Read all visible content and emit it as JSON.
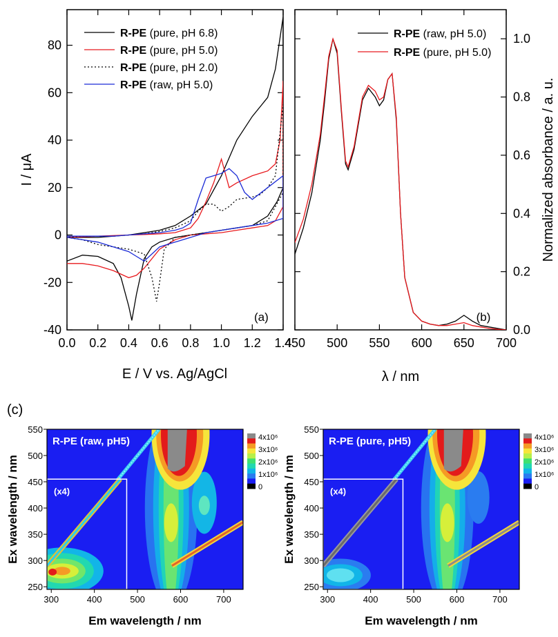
{
  "chart_data": [
    {
      "panel": "(a)",
      "type": "line",
      "xlabel": "E / V vs. Ag/AgCl",
      "ylabel": "I / μA",
      "xlim": [
        0.0,
        1.4
      ],
      "ylim": [
        -40,
        95
      ],
      "xticks": [
        "0.0",
        "0.2",
        "0.4",
        "0.6",
        "0.8",
        "1.0",
        "1.2",
        "1.4"
      ],
      "yticks": [
        "-40",
        "-20",
        "0",
        "20",
        "40",
        "60",
        "80"
      ],
      "legend": "top-left",
      "series": [
        {
          "name": "R-PE (pure, pH 6.8)",
          "bold": "R-PE",
          "rest": " (pure, pH 6.8)",
          "color": "#000000",
          "dash": "",
          "x": [
            0.0,
            0.1,
            0.2,
            0.3,
            0.35,
            0.4,
            0.42,
            0.45,
            0.5,
            0.55,
            0.6,
            0.7,
            0.8,
            0.9,
            1.0,
            1.1,
            1.2,
            1.3,
            1.36,
            1.4,
            1.4,
            1.35,
            1.3,
            1.2,
            1.1,
            1.0,
            0.9,
            0.8,
            0.7,
            0.6,
            0.5,
            0.4,
            0.3,
            0.2,
            0.1,
            0.0
          ],
          "y": [
            -11,
            -8.5,
            -9,
            -12,
            -18,
            -30,
            -36,
            -25,
            -10,
            -5,
            -3,
            -1,
            0,
            1,
            2,
            3,
            4,
            8,
            14,
            20,
            92,
            70,
            58,
            50,
            40,
            25,
            13,
            8,
            4,
            2,
            1,
            0,
            -0.5,
            -1,
            -1,
            -1
          ]
        },
        {
          "name": "R-PE (pure, pH 5.0)",
          "bold": "R-PE",
          "rest": " (pure, pH 5.0)",
          "color": "#e8191d",
          "dash": "",
          "x": [
            0.0,
            0.1,
            0.2,
            0.3,
            0.4,
            0.45,
            0.5,
            0.6,
            0.7,
            0.8,
            0.9,
            1.0,
            1.1,
            1.2,
            1.3,
            1.35,
            1.4,
            1.4,
            1.38,
            1.35,
            1.3,
            1.2,
            1.1,
            1.05,
            1.0,
            0.95,
            0.9,
            0.85,
            0.8,
            0.7,
            0.6,
            0.5,
            0.4,
            0.2,
            0.0
          ],
          "y": [
            -12,
            -12,
            -13,
            -15,
            -18,
            -17,
            -14,
            -6,
            -2,
            0,
            0.5,
            1,
            2,
            3,
            4,
            6,
            12,
            65,
            40,
            30,
            27,
            25,
            22,
            20,
            32,
            22,
            14,
            7,
            3,
            1,
            0.5,
            0.2,
            0,
            -0.5,
            -1
          ]
        },
        {
          "name": "R-PE (pure, pH 2.0)",
          "bold": "R-PE",
          "rest": " (pure, pH 2.0)",
          "color": "#000000",
          "dash": "2,3",
          "x": [
            0.0,
            0.1,
            0.2,
            0.3,
            0.4,
            0.5,
            0.55,
            0.58,
            0.6,
            0.63,
            0.7,
            0.8,
            0.9,
            1.0,
            1.1,
            1.2,
            1.3,
            1.35,
            1.4,
            1.4,
            1.35,
            1.3,
            1.25,
            1.2,
            1.1,
            1.05,
            1.0,
            0.95,
            0.9,
            0.85,
            0.8,
            0.7,
            0.6,
            0.5,
            0.4,
            0.3,
            0.2,
            0.1,
            0.0
          ],
          "y": [
            -1,
            -2,
            -4,
            -5,
            -6,
            -8,
            -18,
            -28,
            -20,
            -6,
            -1,
            0,
            1,
            2,
            3,
            4,
            6,
            12,
            18,
            55,
            25,
            20,
            17,
            16,
            15,
            12,
            10,
            13,
            13,
            10,
            6,
            3,
            1.5,
            0.5,
            0,
            -0.5,
            -0.5,
            -0.5,
            -1
          ]
        },
        {
          "name": "R-PE (raw, pH 5.0)",
          "bold": "R-PE",
          "rest": " (raw, pH 5.0)",
          "color": "#1a2ad6",
          "dash": "",
          "x": [
            0.0,
            0.1,
            0.2,
            0.3,
            0.4,
            0.45,
            0.5,
            0.55,
            0.6,
            0.7,
            0.8,
            0.9,
            1.0,
            1.1,
            1.2,
            1.3,
            1.4,
            1.4,
            1.3,
            1.2,
            1.15,
            1.1,
            1.05,
            1.0,
            0.95,
            0.9,
            0.85,
            0.8,
            0.75,
            0.7,
            0.6,
            0.5,
            0.4,
            0.3,
            0.2,
            0.1,
            0.0
          ],
          "y": [
            -1,
            -2,
            -3,
            -5,
            -7,
            -9,
            -11,
            -8,
            -5,
            -3,
            -1,
            1,
            2,
            3,
            4,
            5,
            7,
            25,
            20,
            15,
            18,
            25,
            28,
            26,
            25,
            24,
            15,
            5,
            3,
            2,
            1,
            0.5,
            0,
            -0.5,
            -0.5,
            -0.5,
            -0.5
          ]
        }
      ]
    },
    {
      "panel": "(b)",
      "type": "line",
      "xlabel": "λ / nm",
      "ylabel": "Normalized absorbance / a. u.",
      "xlim": [
        450,
        700
      ],
      "ylim": [
        0.0,
        1.1
      ],
      "xticks": [
        "450",
        "500",
        "550",
        "600",
        "650",
        "700"
      ],
      "yticks": [
        "0.0",
        "0.2",
        "0.4",
        "0.6",
        "0.8",
        "1.0"
      ],
      "legend": "top-right",
      "series": [
        {
          "name": "R-PE (raw, pH 5.0)",
          "bold": "R-PE",
          "rest": " (raw, pH 5.0)",
          "color": "#000000",
          "dash": "",
          "x": [
            450,
            460,
            470,
            480,
            485,
            490,
            495,
            500,
            505,
            510,
            513,
            520,
            530,
            537,
            545,
            550,
            555,
            560,
            565,
            570,
            575,
            580,
            590,
            600,
            610,
            620,
            630,
            640,
            650,
            660,
            670,
            680,
            690,
            700
          ],
          "y": [
            0.26,
            0.35,
            0.47,
            0.65,
            0.78,
            0.93,
            1.0,
            0.95,
            0.75,
            0.57,
            0.55,
            0.62,
            0.79,
            0.83,
            0.8,
            0.77,
            0.79,
            0.86,
            0.88,
            0.72,
            0.4,
            0.18,
            0.06,
            0.03,
            0.02,
            0.015,
            0.02,
            0.03,
            0.05,
            0.03,
            0.015,
            0.01,
            0.005,
            0.0
          ]
        },
        {
          "name": "R-PE (pure, pH 5.0)",
          "bold": "R-PE",
          "rest": " (pure, pH 5.0)",
          "color": "#e8191d",
          "dash": "",
          "x": [
            450,
            460,
            470,
            480,
            485,
            490,
            495,
            500,
            505,
            510,
            513,
            520,
            530,
            537,
            545,
            550,
            555,
            560,
            565,
            570,
            575,
            580,
            590,
            600,
            610,
            620,
            630,
            640,
            650,
            660,
            670,
            680,
            690,
            700
          ],
          "y": [
            0.3,
            0.38,
            0.5,
            0.67,
            0.8,
            0.94,
            1.0,
            0.96,
            0.76,
            0.58,
            0.56,
            0.63,
            0.8,
            0.84,
            0.82,
            0.79,
            0.8,
            0.86,
            0.88,
            0.73,
            0.4,
            0.18,
            0.06,
            0.03,
            0.02,
            0.015,
            0.015,
            0.02,
            0.025,
            0.015,
            0.01,
            0.005,
            0.002,
            0.0
          ]
        }
      ]
    },
    {
      "panel": "(c) left",
      "type": "heatmap",
      "title": "R-PE (raw, pH5)",
      "inset": "(x4)",
      "xlabel": "Em wavelength / nm",
      "ylabel": "Ex wavelength / nm",
      "xlim": [
        290,
        745
      ],
      "ylim": [
        245,
        550
      ],
      "xticks": [
        "300",
        "400",
        "500",
        "600",
        "700"
      ],
      "yticks": [
        "250",
        "300",
        "350",
        "400",
        "450",
        "500",
        "550"
      ],
      "colorbar": [
        "4x10⁶",
        "3x10⁶",
        "2x10⁶",
        "1x10⁶",
        "0"
      ]
    },
    {
      "panel": "(c) right",
      "type": "heatmap",
      "title": "R-PE (pure, pH5)",
      "inset": "(x4)",
      "xlabel": "Em wavelength / nm",
      "ylabel": "Ex wavelength / nm",
      "xlim": [
        290,
        745
      ],
      "ylim": [
        245,
        550
      ],
      "xticks": [
        "300",
        "400",
        "500",
        "600",
        "700"
      ],
      "yticks": [
        "250",
        "300",
        "350",
        "400",
        "450",
        "500",
        "550"
      ],
      "colorbar": [
        "4x10⁶",
        "3x10⁶",
        "2x10⁶",
        "1x10⁶",
        "0"
      ]
    }
  ],
  "labels": {
    "panel_a": "(a)",
    "panel_b": "(b)",
    "panel_c": "(c)",
    "mu": "μ"
  }
}
